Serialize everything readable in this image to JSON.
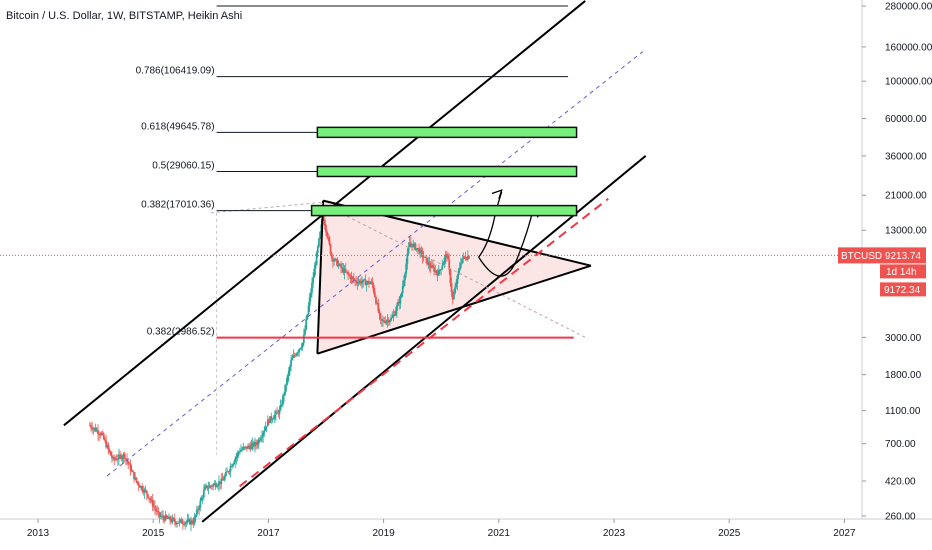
{
  "header": {
    "title": "Bitcoin / U.S. Dollar, 1W, BITSTAMP, Heikin Ashi"
  },
  "colors": {
    "candle_up": "#26a69a",
    "candle_down": "#ef5350",
    "price_tag": "#ef5350",
    "support_line": "#f23645",
    "zone_fill": "#76f07a",
    "triangle_fill": "#fbdede",
    "channel": "#000000",
    "midline": "#6a5acd"
  },
  "chart_data": {
    "type": "candlestick",
    "title": "Bitcoin / U.S. Dollar, 1W, BITSTAMP, Heikin Ashi",
    "y_scale": "log",
    "x_ticks": [
      "2013",
      "2015",
      "2017",
      "2019",
      "2021",
      "2023",
      "2025",
      "2027"
    ],
    "y_ticks": [
      "280000.00",
      "160000.00",
      "100000.00",
      "60000.00",
      "36000.00",
      "21000.00",
      "13000.00",
      "3000.00",
      "1800.00",
      "1100.00",
      "700.00",
      "420.00",
      "260.00"
    ],
    "fib_levels": [
      {
        "label": "0.786(106419.09)",
        "value": 106419.09
      },
      {
        "label": "0.618(49645.78)",
        "value": 49645.78
      },
      {
        "label": "0.5(29060.15)",
        "value": 29060.15
      },
      {
        "label": "0.382(17010.36)",
        "value": 17010.36
      },
      {
        "label": "0.382(2986.52)",
        "value": 2986.52
      }
    ],
    "symbol": "BTCUSD",
    "last_price": "9213.74",
    "countdown": "1d 14h",
    "secondary_price": "9172.34",
    "series": [
      {
        "x": 2013.9,
        "y": 900
      },
      {
        "x": 2014.1,
        "y": 800
      },
      {
        "x": 2014.3,
        "y": 560
      },
      {
        "x": 2014.5,
        "y": 600
      },
      {
        "x": 2014.7,
        "y": 420
      },
      {
        "x": 2014.9,
        "y": 350
      },
      {
        "x": 2015.1,
        "y": 260
      },
      {
        "x": 2015.4,
        "y": 240
      },
      {
        "x": 2015.7,
        "y": 240
      },
      {
        "x": 2015.9,
        "y": 380
      },
      {
        "x": 2016.2,
        "y": 420
      },
      {
        "x": 2016.5,
        "y": 640
      },
      {
        "x": 2016.8,
        "y": 700
      },
      {
        "x": 2017.0,
        "y": 960
      },
      {
        "x": 2017.2,
        "y": 1100
      },
      {
        "x": 2017.4,
        "y": 2200
      },
      {
        "x": 2017.6,
        "y": 2800
      },
      {
        "x": 2017.75,
        "y": 6000
      },
      {
        "x": 2017.95,
        "y": 16000
      },
      {
        "x": 2018.1,
        "y": 9000
      },
      {
        "x": 2018.3,
        "y": 7500
      },
      {
        "x": 2018.5,
        "y": 6500
      },
      {
        "x": 2018.8,
        "y": 6300
      },
      {
        "x": 2018.95,
        "y": 3700
      },
      {
        "x": 2019.15,
        "y": 3900
      },
      {
        "x": 2019.3,
        "y": 5200
      },
      {
        "x": 2019.45,
        "y": 11000
      },
      {
        "x": 2019.6,
        "y": 10000
      },
      {
        "x": 2019.8,
        "y": 8000
      },
      {
        "x": 2019.95,
        "y": 7200
      },
      {
        "x": 2020.1,
        "y": 9500
      },
      {
        "x": 2020.2,
        "y": 5000
      },
      {
        "x": 2020.35,
        "y": 8800
      },
      {
        "x": 2020.5,
        "y": 9200
      }
    ]
  }
}
